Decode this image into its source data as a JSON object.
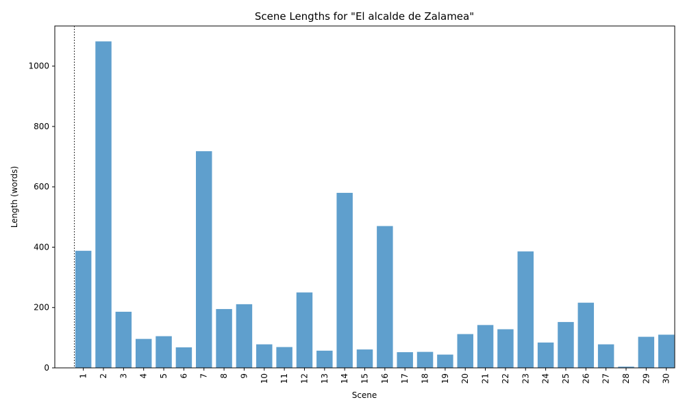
{
  "chart_data": {
    "type": "bar",
    "title": "Scene Lengths for \"El alcalde de Zalamea\"",
    "xlabel": "Scene",
    "ylabel": "Length (words)",
    "categories": [
      "1",
      "2",
      "3",
      "4",
      "5",
      "6",
      "7",
      "8",
      "9",
      "10",
      "11",
      "12",
      "13",
      "14",
      "15",
      "16",
      "17",
      "18",
      "19",
      "20",
      "21",
      "22",
      "23",
      "24",
      "25",
      "26",
      "27",
      "28",
      "29",
      "30"
    ],
    "values": [
      388,
      1082,
      186,
      96,
      105,
      68,
      718,
      195,
      211,
      78,
      69,
      250,
      57,
      580,
      61,
      470,
      52,
      53,
      44,
      112,
      142,
      128,
      386,
      84,
      152,
      216,
      78,
      4,
      103,
      110
    ],
    "ylim": [
      0,
      1133
    ],
    "yticks": [
      0,
      200,
      400,
      600,
      800,
      1000
    ],
    "bar_color": "#5f9fcd",
    "grid": false,
    "vline_before_category": "1"
  }
}
